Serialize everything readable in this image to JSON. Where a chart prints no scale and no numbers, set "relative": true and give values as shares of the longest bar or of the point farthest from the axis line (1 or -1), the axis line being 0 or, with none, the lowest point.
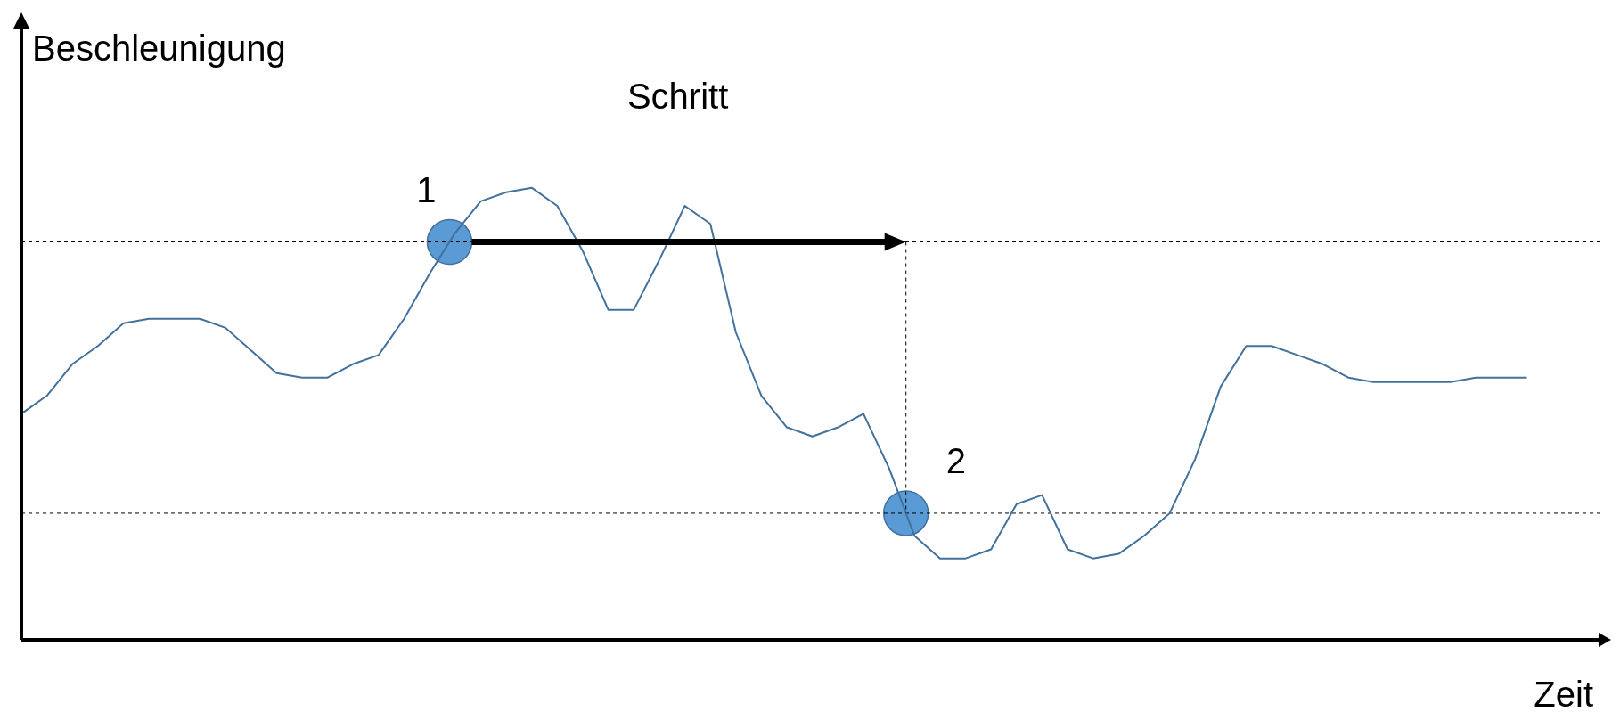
{
  "chart_data": {
    "type": "line",
    "relative": true,
    "xlabel": "Zeit",
    "ylabel": "Beschleunigung",
    "annotations": [
      "Schritt",
      "1",
      "2"
    ],
    "categories": [
      null,
      null,
      null,
      null,
      null,
      null,
      null,
      null,
      null,
      null,
      null,
      null,
      null,
      null,
      null,
      null,
      null,
      null,
      null,
      null,
      null,
      null,
      null,
      null,
      null,
      null,
      null,
      null,
      null,
      null,
      null,
      null,
      null,
      null,
      null,
      null,
      null,
      null,
      null,
      null,
      null,
      null,
      null,
      null,
      null,
      null,
      null,
      null,
      null,
      null,
      null,
      null,
      null,
      null,
      null,
      null,
      null,
      null,
      null,
      null
    ],
    "series": [
      {
        "color": "#41719c",
        "values": [
          0.5,
          0.54,
          0.61,
          0.65,
          0.7,
          0.71,
          0.71,
          0.71,
          0.69,
          0.64,
          0.59,
          0.58,
          0.58,
          0.61,
          0.63,
          0.71,
          0.81,
          0.9,
          0.97,
          0.99,
          1.0,
          0.96,
          0.86,
          0.73,
          0.73,
          0.84,
          0.96,
          0.92,
          0.68,
          0.54,
          0.47,
          0.45,
          0.47,
          0.5,
          0.38,
          0.23,
          0.18,
          0.18,
          0.2,
          0.3,
          0.32,
          0.2,
          0.18,
          0.19,
          0.23,
          0.28,
          0.4,
          0.56,
          0.65,
          0.65,
          0.63,
          0.61,
          0.58,
          0.57,
          0.57,
          0.57,
          0.57,
          0.58,
          0.58,
          0.58
        ]
      }
    ],
    "ref_lines": [
      {
        "axis": "y",
        "value": 0.88,
        "line_style": "dashed",
        "color": "#000000"
      },
      {
        "axis": "y",
        "value": 0.28,
        "line_style": "dashed",
        "color": "#000000"
      }
    ],
    "marker": "none",
    "line_style": "solid"
  }
}
